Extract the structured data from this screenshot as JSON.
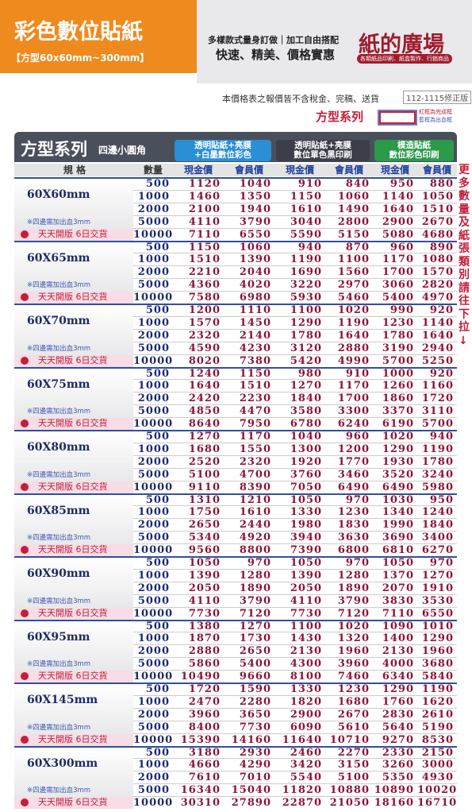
{
  "header": {
    "title": "彩色數位貼紙",
    "subtitle": "【方型60x60mm~300mm】",
    "slogan1": "多樣款式量身訂做｜加工自由搭配",
    "slogan2": "快速、精美、價格實惠",
    "brand": "紙的廣場",
    "brand_sub": "各類紙品印刷．紙盒製作．行銷商品"
  },
  "notice": {
    "text": "本價格表之報價皆不含稅金、完稿、送貨",
    "version": "112-1115修正版",
    "series": "方型系列",
    "legend_red": "紅框為完成框",
    "legend_blue": "藍框為出血框"
  },
  "table": {
    "title": "方型系列",
    "title_sub": "四邊小圓角",
    "groups": [
      "透明貼紙+亮膜\n+白墨數位彩色",
      "透明貼紙+亮膜\n數位單色黑印刷",
      "模造貼紙\n數位彩色印刷"
    ],
    "columns": [
      "規 格",
      "數量",
      "現金價",
      "會員價",
      "現金價",
      "會員價",
      "現金價",
      "會員價"
    ],
    "bleed_note": "※四邊需加出血3mm",
    "delivery_note": "天天開版 6日交貨",
    "side_note": "更多數量及紙張類別請往下拉↓",
    "blocks": [
      {
        "size": "60X60mm",
        "rows": [
          [
            500,
            1120,
            1040,
            910,
            840,
            950,
            880
          ],
          [
            1000,
            1460,
            1350,
            1150,
            1060,
            1140,
            1050
          ],
          [
            2000,
            2100,
            1940,
            1610,
            1490,
            1640,
            1510
          ],
          [
            5000,
            4110,
            3790,
            3040,
            2800,
            2900,
            2670
          ],
          [
            10000,
            7110,
            6550,
            5590,
            5150,
            5080,
            4680
          ]
        ]
      },
      {
        "size": "60X65mm",
        "rows": [
          [
            500,
            1150,
            1060,
            940,
            870,
            960,
            890
          ],
          [
            1000,
            1510,
            1390,
            1190,
            1100,
            1170,
            1080
          ],
          [
            2000,
            2210,
            2040,
            1690,
            1560,
            1700,
            1570
          ],
          [
            5000,
            4360,
            4020,
            3220,
            2970,
            3060,
            2820
          ],
          [
            10000,
            7580,
            6980,
            5930,
            5460,
            5400,
            4970
          ]
        ]
      },
      {
        "size": "60X70mm",
        "rows": [
          [
            500,
            1200,
            1110,
            1100,
            1020,
            990,
            920
          ],
          [
            1000,
            1570,
            1450,
            1290,
            1190,
            1230,
            1140
          ],
          [
            2000,
            2320,
            2140,
            1780,
            1640,
            1780,
            1640
          ],
          [
            5000,
            4590,
            4230,
            3120,
            2880,
            3190,
            2940
          ],
          [
            10000,
            8020,
            7380,
            5420,
            4990,
            5700,
            5250
          ]
        ]
      },
      {
        "size": "60X75mm",
        "rows": [
          [
            500,
            1240,
            1150,
            980,
            910,
            1000,
            920
          ],
          [
            1000,
            1640,
            1510,
            1270,
            1170,
            1260,
            1160
          ],
          [
            2000,
            2420,
            2230,
            1840,
            1700,
            1860,
            1720
          ],
          [
            5000,
            4850,
            4470,
            3580,
            3300,
            3370,
            3110
          ],
          [
            10000,
            8640,
            7950,
            6780,
            6240,
            6190,
            5700
          ]
        ]
      },
      {
        "size": "60X80mm",
        "rows": [
          [
            500,
            1270,
            1170,
            1040,
            960,
            1020,
            940
          ],
          [
            1000,
            1680,
            1550,
            1300,
            1200,
            1290,
            1190
          ],
          [
            2000,
            2520,
            2320,
            1920,
            1770,
            1930,
            1780
          ],
          [
            5000,
            5100,
            4700,
            3760,
            3460,
            3520,
            3240
          ],
          [
            10000,
            9110,
            8390,
            7050,
            6490,
            6490,
            5980
          ]
        ]
      },
      {
        "size": "60X85mm",
        "rows": [
          [
            500,
            1310,
            1210,
            1050,
            970,
            1030,
            950
          ],
          [
            1000,
            1750,
            1610,
            1330,
            1230,
            1340,
            1240
          ],
          [
            2000,
            2650,
            2440,
            1980,
            1830,
            1990,
            1840
          ],
          [
            5000,
            5340,
            4920,
            3940,
            3630,
            3690,
            3400
          ],
          [
            10000,
            9560,
            8800,
            7390,
            6800,
            6810,
            6270
          ]
        ]
      },
      {
        "size": "60X90mm",
        "rows": [
          [
            500,
            1050,
            970,
            1050,
            970,
            1050,
            970
          ],
          [
            1000,
            1390,
            1280,
            1390,
            1280,
            1370,
            1270
          ],
          [
            2000,
            2050,
            1890,
            2050,
            1890,
            2070,
            1910
          ],
          [
            5000,
            4110,
            3790,
            4110,
            3790,
            3830,
            3530
          ],
          [
            10000,
            7730,
            7120,
            7730,
            7120,
            7110,
            6550
          ]
        ]
      },
      {
        "size": "60X95mm",
        "rows": [
          [
            500,
            1380,
            1270,
            1100,
            1020,
            1090,
            1010
          ],
          [
            1000,
            1870,
            1730,
            1430,
            1320,
            1400,
            1290
          ],
          [
            2000,
            2880,
            2650,
            2130,
            1960,
            2130,
            1960
          ],
          [
            5000,
            5860,
            5400,
            4300,
            3960,
            4000,
            3680
          ],
          [
            10000,
            10490,
            9660,
            8100,
            7460,
            6340,
            5840
          ]
        ]
      },
      {
        "size": "60X145mm",
        "rows": [
          [
            500,
            1720,
            1590,
            1330,
            1230,
            1290,
            1190
          ],
          [
            1000,
            2470,
            2280,
            1820,
            1680,
            1760,
            1620
          ],
          [
            2000,
            3960,
            3650,
            2900,
            2670,
            2830,
            2610
          ],
          [
            5000,
            8400,
            7730,
            6090,
            5610,
            5640,
            5190
          ],
          [
            10000,
            15390,
            14160,
            11640,
            10710,
            9270,
            8530
          ]
        ]
      },
      {
        "size": "60X300mm",
        "rows": [
          [
            500,
            3180,
            2930,
            2460,
            2270,
            2330,
            2150
          ],
          [
            1000,
            4660,
            4290,
            3420,
            3150,
            3260,
            3000
          ],
          [
            2000,
            7610,
            7010,
            5540,
            5100,
            5350,
            4930
          ],
          [
            5000,
            16340,
            15040,
            11820,
            10880,
            10890,
            10020
          ],
          [
            10000,
            30310,
            27890,
            22870,
            21050,
            18160,
            16710
          ]
        ]
      }
    ]
  }
}
